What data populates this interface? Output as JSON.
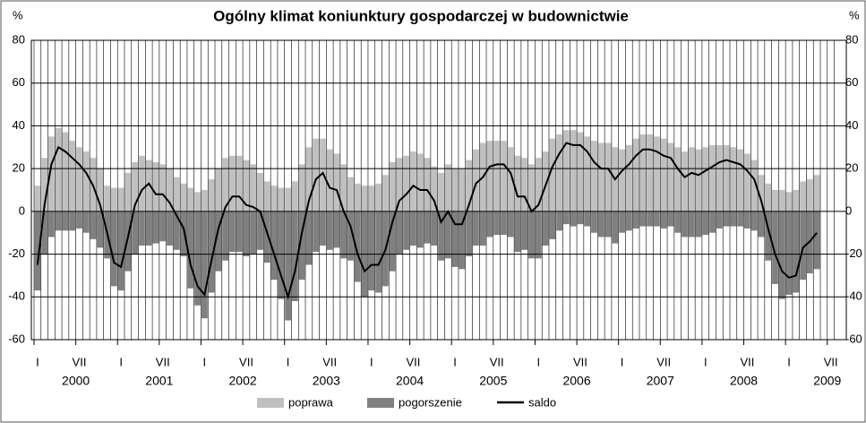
{
  "chart_data": {
    "type": "bar",
    "title": "Ogólny klimat koniunktury gospodarczej w budownictwie",
    "y_unit": "%",
    "y2_unit": "%",
    "ylim": [
      -60,
      80
    ],
    "yticks": [
      -60,
      -40,
      -20,
      0,
      20,
      40,
      60,
      80
    ],
    "y2lim": [
      -60,
      80
    ],
    "y2ticks": [
      -60,
      -40,
      -20,
      0,
      20,
      40,
      60,
      80
    ],
    "grid": true,
    "categories": [
      "I",
      null,
      null,
      null,
      null,
      null,
      "VII",
      null,
      null,
      null,
      null,
      null,
      "I",
      null,
      null,
      null,
      null,
      null,
      "VII",
      null,
      null,
      null,
      null,
      null,
      "I",
      null,
      null,
      null,
      null,
      null,
      "VII",
      null,
      null,
      null,
      null,
      null,
      "I",
      null,
      null,
      null,
      null,
      null,
      "VII",
      null,
      null,
      null,
      null,
      null,
      "I",
      null,
      null,
      null,
      null,
      null,
      "VII",
      null,
      null,
      null,
      null,
      null,
      "I",
      null,
      null,
      null,
      null,
      null,
      "VII",
      null,
      null,
      null,
      null,
      null,
      "I",
      null,
      null,
      null,
      null,
      null,
      "VII",
      null,
      null,
      null,
      null,
      null,
      "I",
      null,
      null,
      null,
      null,
      null,
      "VII",
      null,
      null,
      null,
      null,
      null,
      "I",
      null,
      null,
      null,
      null,
      null,
      "VII",
      null,
      null,
      null,
      null,
      null,
      "I",
      null,
      null,
      null,
      null,
      null,
      "VII"
    ],
    "years": [
      "2000",
      "2001",
      "2002",
      "2003",
      "2004",
      "2005",
      "2006",
      "2007",
      "2008",
      "2009"
    ],
    "series": [
      {
        "name": "poprawa",
        "mark": "bar",
        "color": "#c0c0c0",
        "values": [
          12,
          25,
          35,
          39,
          37,
          33,
          30,
          28,
          25,
          20,
          12,
          11,
          11,
          18,
          23,
          26,
          24,
          23,
          22,
          20,
          16,
          13,
          11,
          9,
          10,
          15,
          20,
          25,
          26,
          26,
          24,
          22,
          18,
          14,
          12,
          11,
          11,
          14,
          22,
          30,
          34,
          34,
          29,
          27,
          22,
          16,
          13,
          12,
          12,
          13,
          17,
          23,
          25,
          26,
          28,
          27,
          25,
          21,
          18,
          22,
          20,
          20,
          24,
          29,
          32,
          33,
          33,
          33,
          30,
          26,
          25,
          22,
          25,
          28,
          34,
          36,
          38,
          38,
          37,
          35,
          33,
          32,
          32,
          30,
          29,
          31,
          34,
          36,
          36,
          35,
          34,
          32,
          30,
          28,
          30,
          29,
          30,
          31,
          31,
          31,
          30,
          29,
          27,
          24,
          17,
          13,
          10,
          10,
          9,
          10,
          14,
          15,
          17,
          null,
          null
        ]
      },
      {
        "name": "pogorszenie",
        "mark": "bar",
        "color": "#808080",
        "values": [
          -37,
          -20,
          -12,
          -9,
          -9,
          -9,
          -8,
          -10,
          -13,
          -17,
          -22,
          -35,
          -37,
          -28,
          -20,
          -16,
          -16,
          -15,
          -14,
          -16,
          -18,
          -21,
          -36,
          -44,
          -50,
          -38,
          -28,
          -23,
          -19,
          -19,
          -21,
          -20,
          -18,
          -24,
          -32,
          -41,
          -51,
          -42,
          -32,
          -25,
          -19,
          -16,
          -18,
          -17,
          -22,
          -23,
          -33,
          -40,
          -37,
          -38,
          -35,
          -28,
          -20,
          -18,
          -16,
          -17,
          -15,
          -16,
          -23,
          -22,
          -26,
          -27,
          -21,
          -16,
          -16,
          -12,
          -11,
          -11,
          -12,
          -19,
          -18,
          -22,
          -22,
          -16,
          -13,
          -9,
          -6,
          -7,
          -6,
          -7,
          -10,
          -12,
          -12,
          -15,
          -10,
          -9,
          -8,
          -7,
          -7,
          -7,
          -8,
          -7,
          -10,
          -12,
          -12,
          -12,
          -11,
          -10,
          -8,
          -7,
          -7,
          -7,
          -8,
          -9,
          -12,
          -23,
          -34,
          -41,
          -39,
          -38,
          -32,
          -29,
          -27,
          null,
          null
        ]
      },
      {
        "name": "saldo",
        "mark": "line",
        "color": "#000000",
        "values": [
          -25,
          3,
          22,
          30,
          28,
          25,
          22,
          18,
          12,
          3,
          -10,
          -24,
          -26,
          -12,
          3,
          10,
          13,
          8,
          8,
          4,
          -2,
          -8,
          -25,
          -35,
          -39,
          -23,
          -8,
          2,
          7,
          7,
          3,
          2,
          0,
          -10,
          -20,
          -30,
          -40,
          -28,
          -10,
          5,
          15,
          18,
          11,
          10,
          0,
          -7,
          -20,
          -28,
          -25,
          -25,
          -18,
          -5,
          5,
          8,
          12,
          10,
          10,
          5,
          -5,
          0,
          -6,
          -6,
          3,
          13,
          16,
          21,
          22,
          22,
          18,
          7,
          7,
          0,
          3,
          12,
          21,
          27,
          32,
          31,
          31,
          28,
          23,
          20,
          20,
          15,
          19,
          22,
          26,
          29,
          29,
          28,
          26,
          25,
          20,
          16,
          18,
          17,
          19,
          21,
          23,
          24,
          23,
          22,
          19,
          15,
          5,
          -8,
          -20,
          -28,
          -31,
          -30,
          -17,
          -14,
          -10,
          null,
          null
        ]
      }
    ]
  }
}
